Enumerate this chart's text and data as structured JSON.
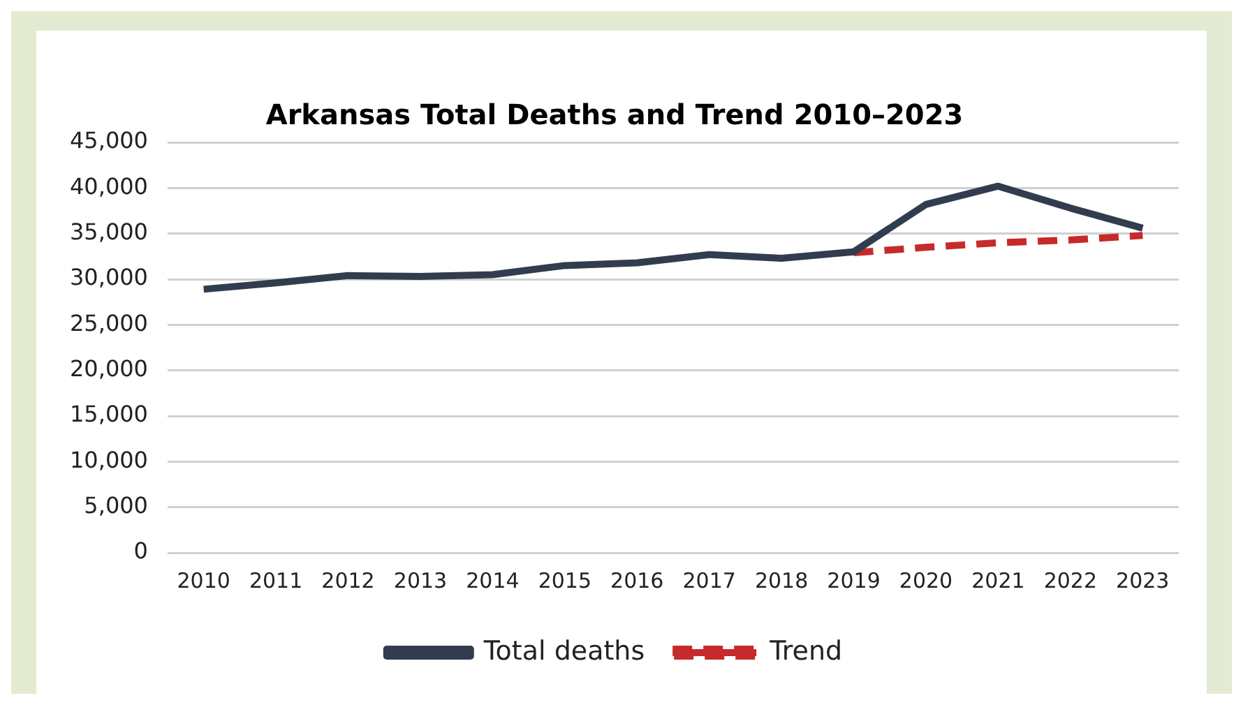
{
  "chart_data": {
    "type": "line",
    "title": "Arkansas Total Deaths and Trend 2010–2023",
    "categories": [
      "2010",
      "2011",
      "2012",
      "2013",
      "2014",
      "2015",
      "2016",
      "2017",
      "2018",
      "2019",
      "2020",
      "2021",
      "2022",
      "2023"
    ],
    "series": [
      {
        "name": "Total deaths",
        "color": "#323c4f",
        "values": [
          28900,
          29600,
          30400,
          30300,
          30500,
          31500,
          31800,
          32700,
          32300,
          33000,
          38200,
          40200,
          37800,
          35600
        ],
        "line_style": "solid"
      },
      {
        "name": "Trend",
        "color": "#c62a2a",
        "values": [
          null,
          null,
          null,
          null,
          null,
          null,
          null,
          null,
          null,
          32900,
          33500,
          34000,
          34300,
          34800
        ],
        "line_style": "dashed"
      }
    ],
    "ylim": [
      0,
      45000
    ],
    "yticks": [
      0,
      {
        "value": 5000,
        "label": "5,000"
      },
      {
        "value": 10000,
        "label": "10,000"
      },
      {
        "value": 15000,
        "label": "15,000"
      },
      {
        "value": 20000,
        "label": "20,000"
      },
      {
        "value": 25000,
        "label": "25,000"
      },
      {
        "value": 30000,
        "label": "30,000"
      },
      {
        "value": 35000,
        "label": "35,000"
      },
      {
        "value": 40000,
        "label": "40,000"
      },
      {
        "value": 45000,
        "label": "45,000"
      }
    ],
    "grid": "y",
    "legend": "bottom",
    "marker": "none"
  }
}
